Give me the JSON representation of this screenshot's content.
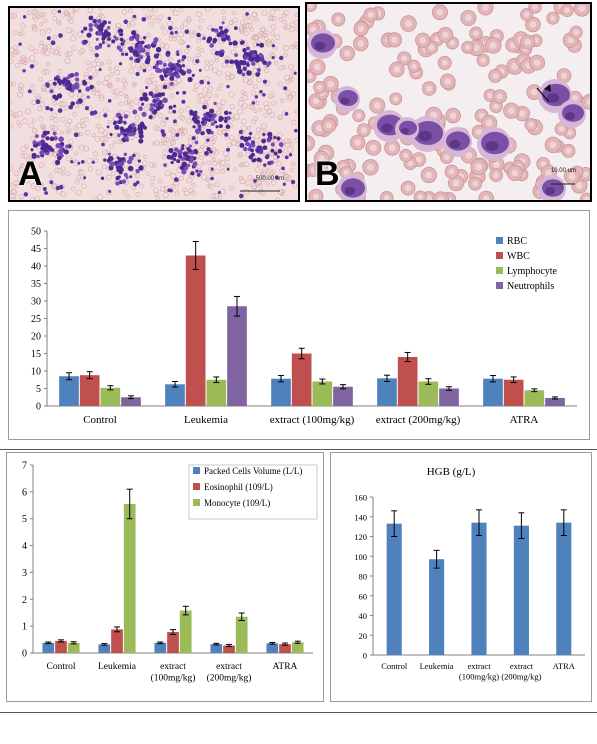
{
  "figure": {
    "photo_a": {
      "label": "A",
      "scale_text": "500.00 um"
    },
    "photo_b": {
      "label": "B",
      "scale_text": "10.00 um"
    }
  },
  "chart_data": [
    {
      "id": "chart1",
      "type": "bar",
      "categories": [
        "Control",
        "Leukemia",
        "extract (100mg/kg)",
        "extract (200mg/kg)",
        "ATRA"
      ],
      "ylim": [
        0,
        50
      ],
      "yticks": [
        0,
        5,
        10,
        15,
        20,
        25,
        30,
        35,
        40,
        45,
        50
      ],
      "legend_position": "top-right",
      "series": [
        {
          "name": "RBC",
          "color": "#4f81bd",
          "values": [
            8.5,
            6.2,
            7.8,
            7.9,
            7.8
          ],
          "errors": [
            1.0,
            0.8,
            0.9,
            0.9,
            0.9
          ]
        },
        {
          "name": "WBC",
          "color": "#c0504d",
          "values": [
            8.8,
            43.0,
            15.0,
            14.0,
            7.5
          ],
          "errors": [
            1.0,
            4.0,
            1.5,
            1.3,
            0.8
          ]
        },
        {
          "name": "Lymphocyte",
          "color": "#9bbb59",
          "values": [
            5.2,
            7.5,
            7.0,
            7.0,
            4.5
          ],
          "errors": [
            0.6,
            0.8,
            0.7,
            0.8,
            0.4
          ]
        },
        {
          "name": "Neutrophils",
          "color": "#8064a2",
          "values": [
            2.5,
            28.5,
            5.5,
            5.0,
            2.3
          ],
          "errors": [
            0.4,
            2.8,
            0.6,
            0.5,
            0.3
          ]
        }
      ]
    },
    {
      "id": "chart2",
      "type": "bar",
      "categories": [
        "Control",
        "Leukemia",
        "extract\n(100mg/kg)",
        "extract\n(200mg/kg)",
        "ATRA"
      ],
      "ylim": [
        0,
        7
      ],
      "yticks": [
        0,
        1,
        2,
        3,
        4,
        5,
        6,
        7
      ],
      "legend_position": "top-right",
      "series": [
        {
          "name": "Packed Cells Volume (L/L)",
          "color": "#4f81bd",
          "values": [
            0.38,
            0.32,
            0.38,
            0.33,
            0.36
          ],
          "errors": [
            0.03,
            0.03,
            0.03,
            0.03,
            0.03
          ]
        },
        {
          "name": "Eosinophil (109/L)",
          "color": "#c0504d",
          "values": [
            0.45,
            0.88,
            0.78,
            0.28,
            0.33
          ],
          "errors": [
            0.04,
            0.09,
            0.09,
            0.04,
            0.04
          ]
        },
        {
          "name": "Monocyte (109/L)",
          "color": "#9bbb59",
          "values": [
            0.38,
            5.55,
            1.58,
            1.35,
            0.4
          ],
          "errors": [
            0.04,
            0.55,
            0.16,
            0.14,
            0.04
          ]
        }
      ]
    },
    {
      "id": "chart3",
      "type": "bar",
      "title": "HGB (g/L)",
      "categories": [
        "Control",
        "Leukemia",
        "extract\n(100mg/kg)",
        "extract\n(200mg/kg)",
        "ATRA"
      ],
      "ylim": [
        0,
        160
      ],
      "yticks": [
        0,
        20,
        40,
        60,
        80,
        100,
        120,
        140,
        160
      ],
      "series": [
        {
          "name": "",
          "color": "#4f81bd",
          "values": [
            133,
            97,
            134,
            131,
            134
          ],
          "errors": [
            13,
            9,
            13,
            13,
            13
          ]
        }
      ]
    }
  ]
}
